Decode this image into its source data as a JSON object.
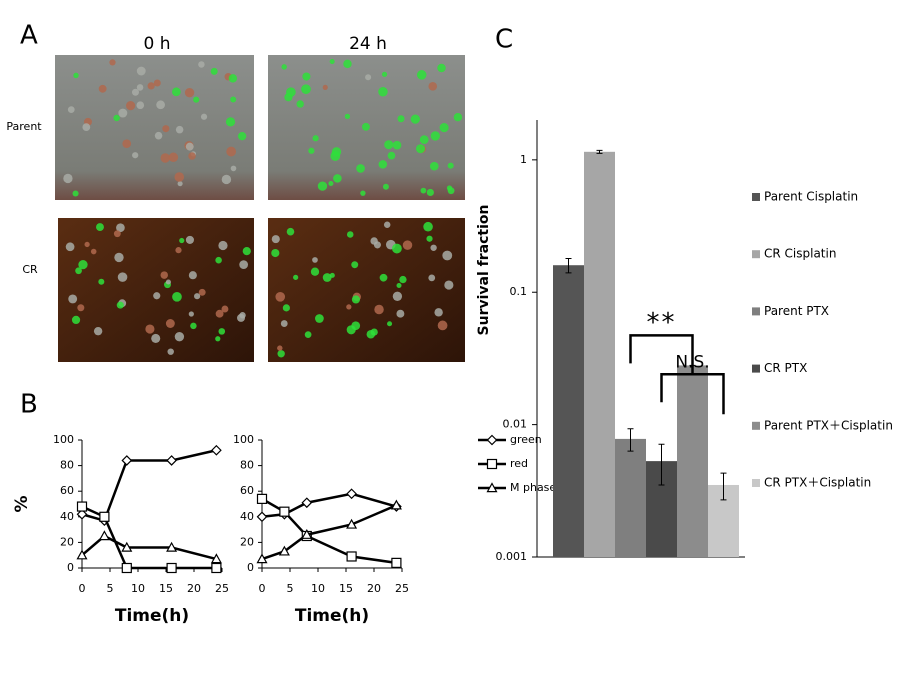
{
  "panels": {
    "labels": [
      "A",
      "B",
      "C"
    ],
    "image_columns": [
      "0 h",
      "24 h"
    ],
    "image_rows": [
      "Parent",
      "CR"
    ]
  },
  "chart_data": [
    {
      "type": "line",
      "x": [
        0,
        4,
        8,
        16,
        24
      ],
      "xlim": [
        0,
        25
      ],
      "xticks": [
        0,
        5,
        10,
        15,
        20,
        25
      ],
      "ylim": [
        0,
        100
      ],
      "yticks": [
        0,
        20,
        40,
        60,
        80,
        100
      ],
      "xlabel": "Time(h)",
      "ylabel": "%",
      "series": [
        {
          "name": "green",
          "color": "#000000",
          "marker": "diamond",
          "values": [
            42,
            37,
            84,
            84,
            92
          ]
        },
        {
          "name": "red",
          "color": "#000000",
          "marker": "square",
          "values": [
            48,
            40,
            0,
            0,
            0
          ]
        },
        {
          "name": "M phase",
          "color": "#000000",
          "marker": "triangle",
          "values": [
            10,
            25,
            16,
            16,
            7
          ]
        }
      ]
    },
    {
      "type": "line",
      "x": [
        0,
        4,
        8,
        16,
        24
      ],
      "xlim": [
        0,
        25
      ],
      "xticks": [
        0,
        5,
        10,
        15,
        20,
        25
      ],
      "ylim": [
        0,
        100
      ],
      "yticks": [
        0,
        20,
        40,
        60,
        80,
        100
      ],
      "xlabel": "Time(h)",
      "legend": "right",
      "series": [
        {
          "name": "green",
          "color": "#000000",
          "marker": "diamond",
          "values": [
            40,
            42,
            51,
            58,
            48
          ]
        },
        {
          "name": "red",
          "color": "#000000",
          "marker": "square",
          "values": [
            54,
            44,
            25,
            9,
            4
          ]
        },
        {
          "name": "M phase",
          "color": "#000000",
          "marker": "triangle",
          "values": [
            7,
            13,
            26,
            34,
            49
          ]
        }
      ]
    },
    {
      "type": "bar",
      "ylabel": "Survival fraction",
      "yscale": "log",
      "ylim": [
        0.001,
        2
      ],
      "yticks": [
        0.001,
        0.01,
        0.1,
        1
      ],
      "legend": "right",
      "annotations": [
        {
          "text": "**",
          "from": 2,
          "to": 4
        },
        {
          "text": "N.S.",
          "from": 3,
          "to": 5
        }
      ],
      "series": [
        {
          "name": "Parent Cisplatin",
          "color": "#555555",
          "values": [
            0.16
          ],
          "errors": [
            0.02
          ]
        },
        {
          "name": "CR Cisplatin",
          "color": "#a6a6a6",
          "values": [
            1.15
          ],
          "errors": [
            0.03
          ]
        },
        {
          "name": "Parent PTX",
          "color": "#7f7f7f",
          "values": [
            0.0078
          ],
          "errors": [
            0.0015
          ]
        },
        {
          "name": "CR PTX",
          "color": "#4a4a4a",
          "values": [
            0.0053
          ],
          "errors": [
            0.0018
          ]
        },
        {
          "name": "Parent PTX＋Cisplatin",
          "color": "#8c8c8c",
          "values": [
            0.028
          ],
          "errors": [
            0
          ]
        },
        {
          "name": "CR PTX＋Cisplatin",
          "color": "#c8c8c8",
          "values": [
            0.0035
          ],
          "errors": [
            0.0008
          ]
        }
      ]
    }
  ]
}
